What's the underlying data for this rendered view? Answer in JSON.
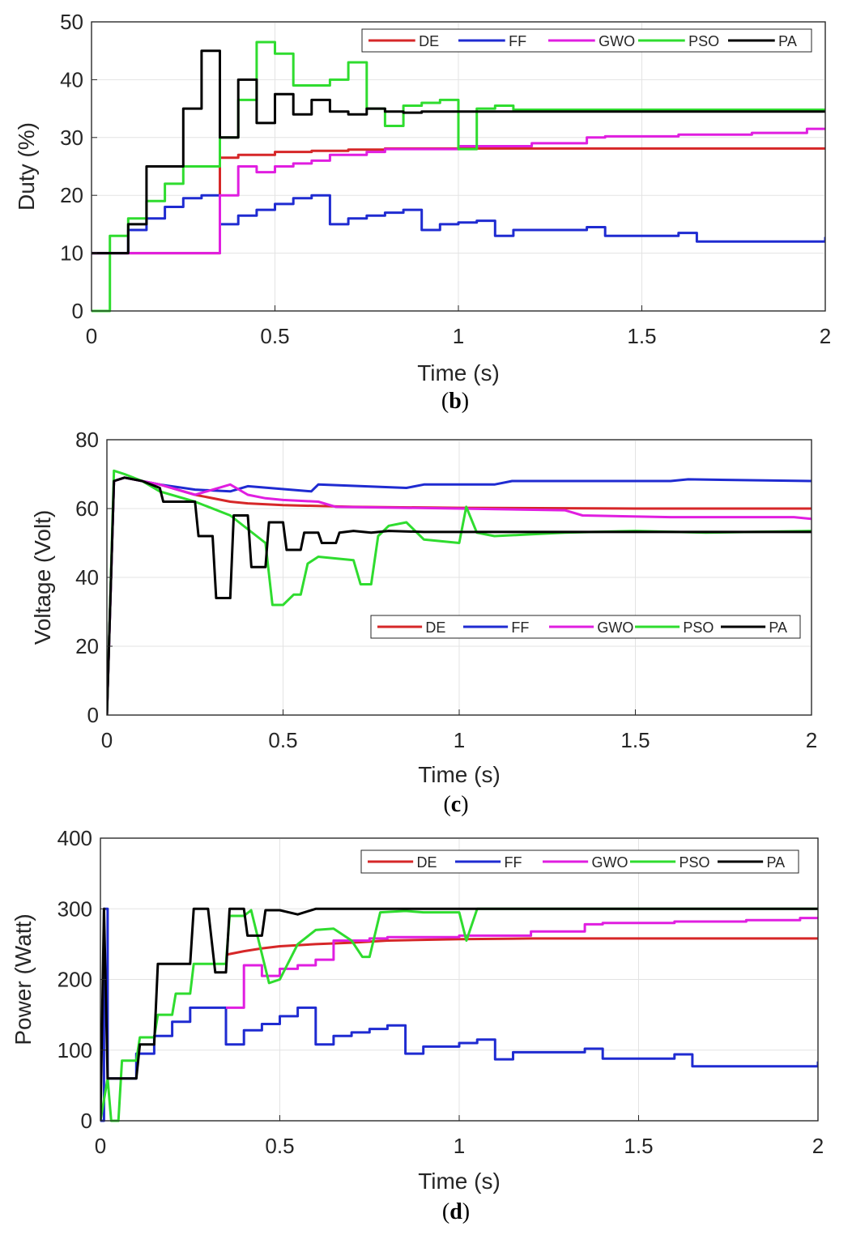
{
  "colors": {
    "DE": "#d62728",
    "FF": "#1f2bd1",
    "GWO": "#e01ee0",
    "PSO": "#2fdc2f",
    "PA": "#000000"
  },
  "chart_data": [
    {
      "type": "line",
      "panel_label": "b",
      "xlabel": "Time (s)",
      "ylabel": "Duty (%)",
      "xlim": [
        0,
        2
      ],
      "ylim": [
        0,
        50
      ],
      "xticks": [
        0,
        0.5,
        1,
        1.5,
        2
      ],
      "xtick_labels": [
        "0",
        "0.5",
        "1",
        "1.5",
        "2"
      ],
      "yticks": [
        0,
        10,
        20,
        30,
        40,
        50
      ],
      "ytick_labels": [
        "0",
        "10",
        "20",
        "30",
        "40",
        "50"
      ],
      "grid": true,
      "legend_position": "top-right",
      "series": [
        {
          "name": "DE",
          "color": "#d62728",
          "step": true,
          "x": [
            0,
            0.35,
            0.4,
            0.5,
            0.6,
            0.7,
            0.8,
            2.0
          ],
          "y": [
            10,
            26.5,
            27,
            27.5,
            27.7,
            27.9,
            28.1,
            28.2
          ]
        },
        {
          "name": "FF",
          "color": "#1f2bd1",
          "step": true,
          "x": [
            0,
            0.1,
            0.15,
            0.2,
            0.25,
            0.3,
            0.35,
            0.4,
            0.45,
            0.5,
            0.55,
            0.6,
            0.65,
            0.7,
            0.75,
            0.8,
            0.85,
            0.9,
            0.95,
            1.0,
            1.05,
            1.1,
            1.15,
            1.35,
            1.4,
            1.6,
            1.65,
            2.0
          ],
          "y": [
            10,
            14,
            16,
            18,
            19.5,
            20,
            15,
            16.5,
            17.5,
            18.5,
            19.5,
            20,
            15,
            16,
            16.5,
            17,
            17.5,
            14,
            15,
            15.3,
            15.6,
            13,
            14,
            14.5,
            13,
            13.5,
            12,
            12.8
          ]
        },
        {
          "name": "GWO",
          "color": "#e01ee0",
          "step": true,
          "x": [
            0,
            0.35,
            0.4,
            0.45,
            0.5,
            0.55,
            0.6,
            0.65,
            0.75,
            0.8,
            1.0,
            1.2,
            1.35,
            1.4,
            1.6,
            1.8,
            1.95,
            2.0
          ],
          "y": [
            10,
            20,
            25,
            24,
            25,
            25.5,
            26,
            27,
            27.5,
            28,
            28.5,
            29,
            30,
            30.2,
            30.5,
            30.8,
            31.5,
            31.5
          ]
        },
        {
          "name": "PSO",
          "color": "#2fdc2f",
          "step": true,
          "x": [
            0,
            0.05,
            0.1,
            0.15,
            0.2,
            0.25,
            0.35,
            0.4,
            0.45,
            0.5,
            0.55,
            0.6,
            0.65,
            0.7,
            0.75,
            0.8,
            0.85,
            0.9,
            0.95,
            1.0,
            1.05,
            1.1,
            1.15,
            2.0
          ],
          "y": [
            0,
            13,
            16,
            19,
            22,
            25,
            30,
            36.5,
            46.5,
            44.5,
            39,
            39,
            40,
            43,
            35,
            32,
            35.5,
            36,
            36.5,
            28,
            35,
            35.5,
            34.8,
            34.5
          ]
        },
        {
          "name": "PA",
          "color": "#000000",
          "step": true,
          "x": [
            0,
            0.1,
            0.15,
            0.25,
            0.3,
            0.35,
            0.4,
            0.45,
            0.5,
            0.55,
            0.6,
            0.65,
            0.7,
            0.75,
            0.8,
            0.85,
            0.9,
            2.0
          ],
          "y": [
            10,
            15,
            25,
            35,
            45,
            30,
            40,
            32.5,
            37.5,
            34,
            36.5,
            34.5,
            34,
            35,
            34.5,
            34.3,
            34.5,
            34.5
          ]
        }
      ]
    },
    {
      "type": "line",
      "panel_label": "c",
      "xlabel": "Time (s)",
      "ylabel": "Voltage (Volt)",
      "xlim": [
        0,
        2
      ],
      "ylim": [
        0,
        80
      ],
      "xticks": [
        0,
        0.5,
        1,
        1.5,
        2
      ],
      "xtick_labels": [
        "0",
        "0.5",
        "1",
        "1.5",
        "2"
      ],
      "yticks": [
        0,
        20,
        40,
        60,
        80
      ],
      "ytick_labels": [
        "0",
        "20",
        "40",
        "60",
        "80"
      ],
      "grid": true,
      "legend_position": "center-right",
      "series": [
        {
          "name": "DE",
          "color": "#d62728",
          "step": false,
          "x": [
            0,
            0.02,
            0.05,
            0.15,
            0.25,
            0.35,
            0.4,
            0.5,
            0.7,
            1.0,
            1.5,
            2.0
          ],
          "y": [
            0,
            68,
            69,
            67,
            64,
            62,
            61.5,
            61,
            60.5,
            60.2,
            60,
            60
          ]
        },
        {
          "name": "FF",
          "color": "#1f2bd1",
          "step": false,
          "x": [
            0,
            0.02,
            0.05,
            0.15,
            0.25,
            0.35,
            0.4,
            0.58,
            0.6,
            0.85,
            0.9,
            1.1,
            1.15,
            1.6,
            1.65,
            2.0
          ],
          "y": [
            0,
            68,
            69,
            67,
            65.5,
            65,
            66.5,
            65,
            67,
            66,
            67,
            67,
            68,
            68,
            68.5,
            68
          ]
        },
        {
          "name": "GWO",
          "color": "#e01ee0",
          "step": false,
          "x": [
            0,
            0.02,
            0.05,
            0.15,
            0.25,
            0.35,
            0.4,
            0.45,
            0.5,
            0.6,
            0.65,
            1.0,
            1.3,
            1.35,
            1.6,
            1.95,
            2.0
          ],
          "y": [
            0,
            68,
            69,
            67,
            64,
            67,
            64,
            63,
            62.5,
            62,
            60.5,
            60,
            59.5,
            58,
            57.5,
            57.5,
            57
          ]
        },
        {
          "name": "PSO",
          "color": "#2fdc2f",
          "step": false,
          "x": [
            0,
            0.02,
            0.05,
            0.1,
            0.15,
            0.25,
            0.35,
            0.4,
            0.45,
            0.47,
            0.5,
            0.53,
            0.55,
            0.57,
            0.6,
            0.7,
            0.72,
            0.75,
            0.77,
            0.8,
            0.85,
            0.9,
            1.0,
            1.02,
            1.05,
            1.1,
            1.2,
            1.3,
            1.5,
            1.7,
            2.0
          ],
          "y": [
            0,
            71,
            70,
            68,
            65,
            62,
            58,
            54,
            50,
            32,
            32,
            35,
            35,
            44,
            46,
            45,
            38,
            38,
            52,
            55,
            56,
            51,
            50,
            60.5,
            53,
            52,
            52.5,
            53,
            53.5,
            53,
            53.5
          ]
        },
        {
          "name": "PA",
          "color": "#000000",
          "step": false,
          "x": [
            0,
            0.02,
            0.05,
            0.1,
            0.15,
            0.16,
            0.25,
            0.26,
            0.3,
            0.31,
            0.33,
            0.35,
            0.36,
            0.4,
            0.41,
            0.45,
            0.46,
            0.5,
            0.51,
            0.55,
            0.56,
            0.6,
            0.61,
            0.65,
            0.66,
            0.7,
            0.75,
            0.8,
            0.9,
            1.0,
            2.0
          ],
          "y": [
            0,
            68,
            69,
            68,
            66,
            62,
            62,
            52,
            52,
            34,
            34,
            34,
            58,
            58,
            43,
            43,
            56,
            56,
            48,
            48,
            53,
            53,
            50,
            50,
            53,
            53.5,
            53,
            53.5,
            53.2,
            53.2,
            53.2
          ]
        }
      ]
    },
    {
      "type": "line",
      "panel_label": "d",
      "xlabel": "Time (s)",
      "ylabel": "Power (Watt)",
      "xlim": [
        0,
        2
      ],
      "ylim": [
        0,
        400
      ],
      "xticks": [
        0,
        0.5,
        1,
        1.5,
        2
      ],
      "xtick_labels": [
        "0",
        "0.5",
        "1",
        "1.5",
        "2"
      ],
      "yticks": [
        0,
        100,
        200,
        300,
        400
      ],
      "ytick_labels": [
        "0",
        "100",
        "200",
        "300",
        "400"
      ],
      "grid": true,
      "legend_position": "top-right",
      "series": [
        {
          "name": "DE",
          "color": "#d62728",
          "step": false,
          "x": [
            0.35,
            0.4,
            0.45,
            0.5,
            0.6,
            0.7,
            0.8,
            1.0,
            1.2,
            1.5,
            2.0
          ],
          "y": [
            235,
            240,
            244,
            247,
            250,
            252,
            255,
            257,
            258,
            258,
            258
          ]
        },
        {
          "name": "FF",
          "color": "#1f2bd1",
          "step": true,
          "x": [
            0,
            0.01,
            0.02,
            0.1,
            0.15,
            0.2,
            0.25,
            0.35,
            0.4,
            0.45,
            0.5,
            0.55,
            0.6,
            0.65,
            0.7,
            0.75,
            0.8,
            0.85,
            0.9,
            1.0,
            1.05,
            1.1,
            1.15,
            1.35,
            1.4,
            1.6,
            1.65,
            2.0
          ],
          "y": [
            0,
            300,
            60,
            95,
            120,
            140,
            160,
            108,
            128,
            137,
            148,
            160,
            108,
            120,
            125,
            130,
            135,
            95,
            105,
            110,
            115,
            87,
            97,
            102,
            88,
            94,
            77,
            84
          ]
        },
        {
          "name": "GWO",
          "color": "#e01ee0",
          "step": true,
          "x": [
            0.35,
            0.4,
            0.45,
            0.5,
            0.55,
            0.6,
            0.65,
            0.75,
            0.8,
            1.0,
            1.2,
            1.35,
            1.4,
            1.6,
            1.8,
            1.95,
            2.0
          ],
          "y": [
            160,
            220,
            205,
            215,
            220,
            228,
            255,
            258,
            260,
            262,
            268,
            278,
            280,
            282,
            284,
            287,
            287
          ]
        },
        {
          "name": "PSO",
          "color": "#2fdc2f",
          "step": false,
          "x": [
            0,
            0.02,
            0.03,
            0.05,
            0.06,
            0.1,
            0.11,
            0.15,
            0.16,
            0.2,
            0.21,
            0.25,
            0.26,
            0.35,
            0.36,
            0.4,
            0.42,
            0.47,
            0.5,
            0.55,
            0.6,
            0.65,
            0.7,
            0.73,
            0.75,
            0.78,
            0.85,
            0.9,
            1.0,
            1.02,
            1.05,
            1.1,
            2.0
          ],
          "y": [
            0,
            60,
            0,
            0,
            85,
            85,
            118,
            118,
            150,
            150,
            180,
            180,
            222,
            222,
            290,
            290,
            298,
            195,
            200,
            250,
            270,
            272,
            255,
            232,
            232,
            295,
            297,
            295,
            295,
            255,
            300,
            300,
            300
          ]
        },
        {
          "name": "PA",
          "color": "#000000",
          "step": false,
          "x": [
            0,
            0.01,
            0.02,
            0.1,
            0.11,
            0.15,
            0.16,
            0.25,
            0.26,
            0.3,
            0.32,
            0.35,
            0.36,
            0.4,
            0.41,
            0.45,
            0.46,
            0.5,
            0.55,
            0.6,
            0.7,
            0.8,
            1.0,
            2.0
          ],
          "y": [
            0,
            300,
            60,
            60,
            108,
            108,
            222,
            222,
            300,
            300,
            210,
            210,
            300,
            300,
            262,
            262,
            298,
            298,
            292,
            300,
            300,
            300,
            300,
            300
          ]
        }
      ]
    }
  ]
}
